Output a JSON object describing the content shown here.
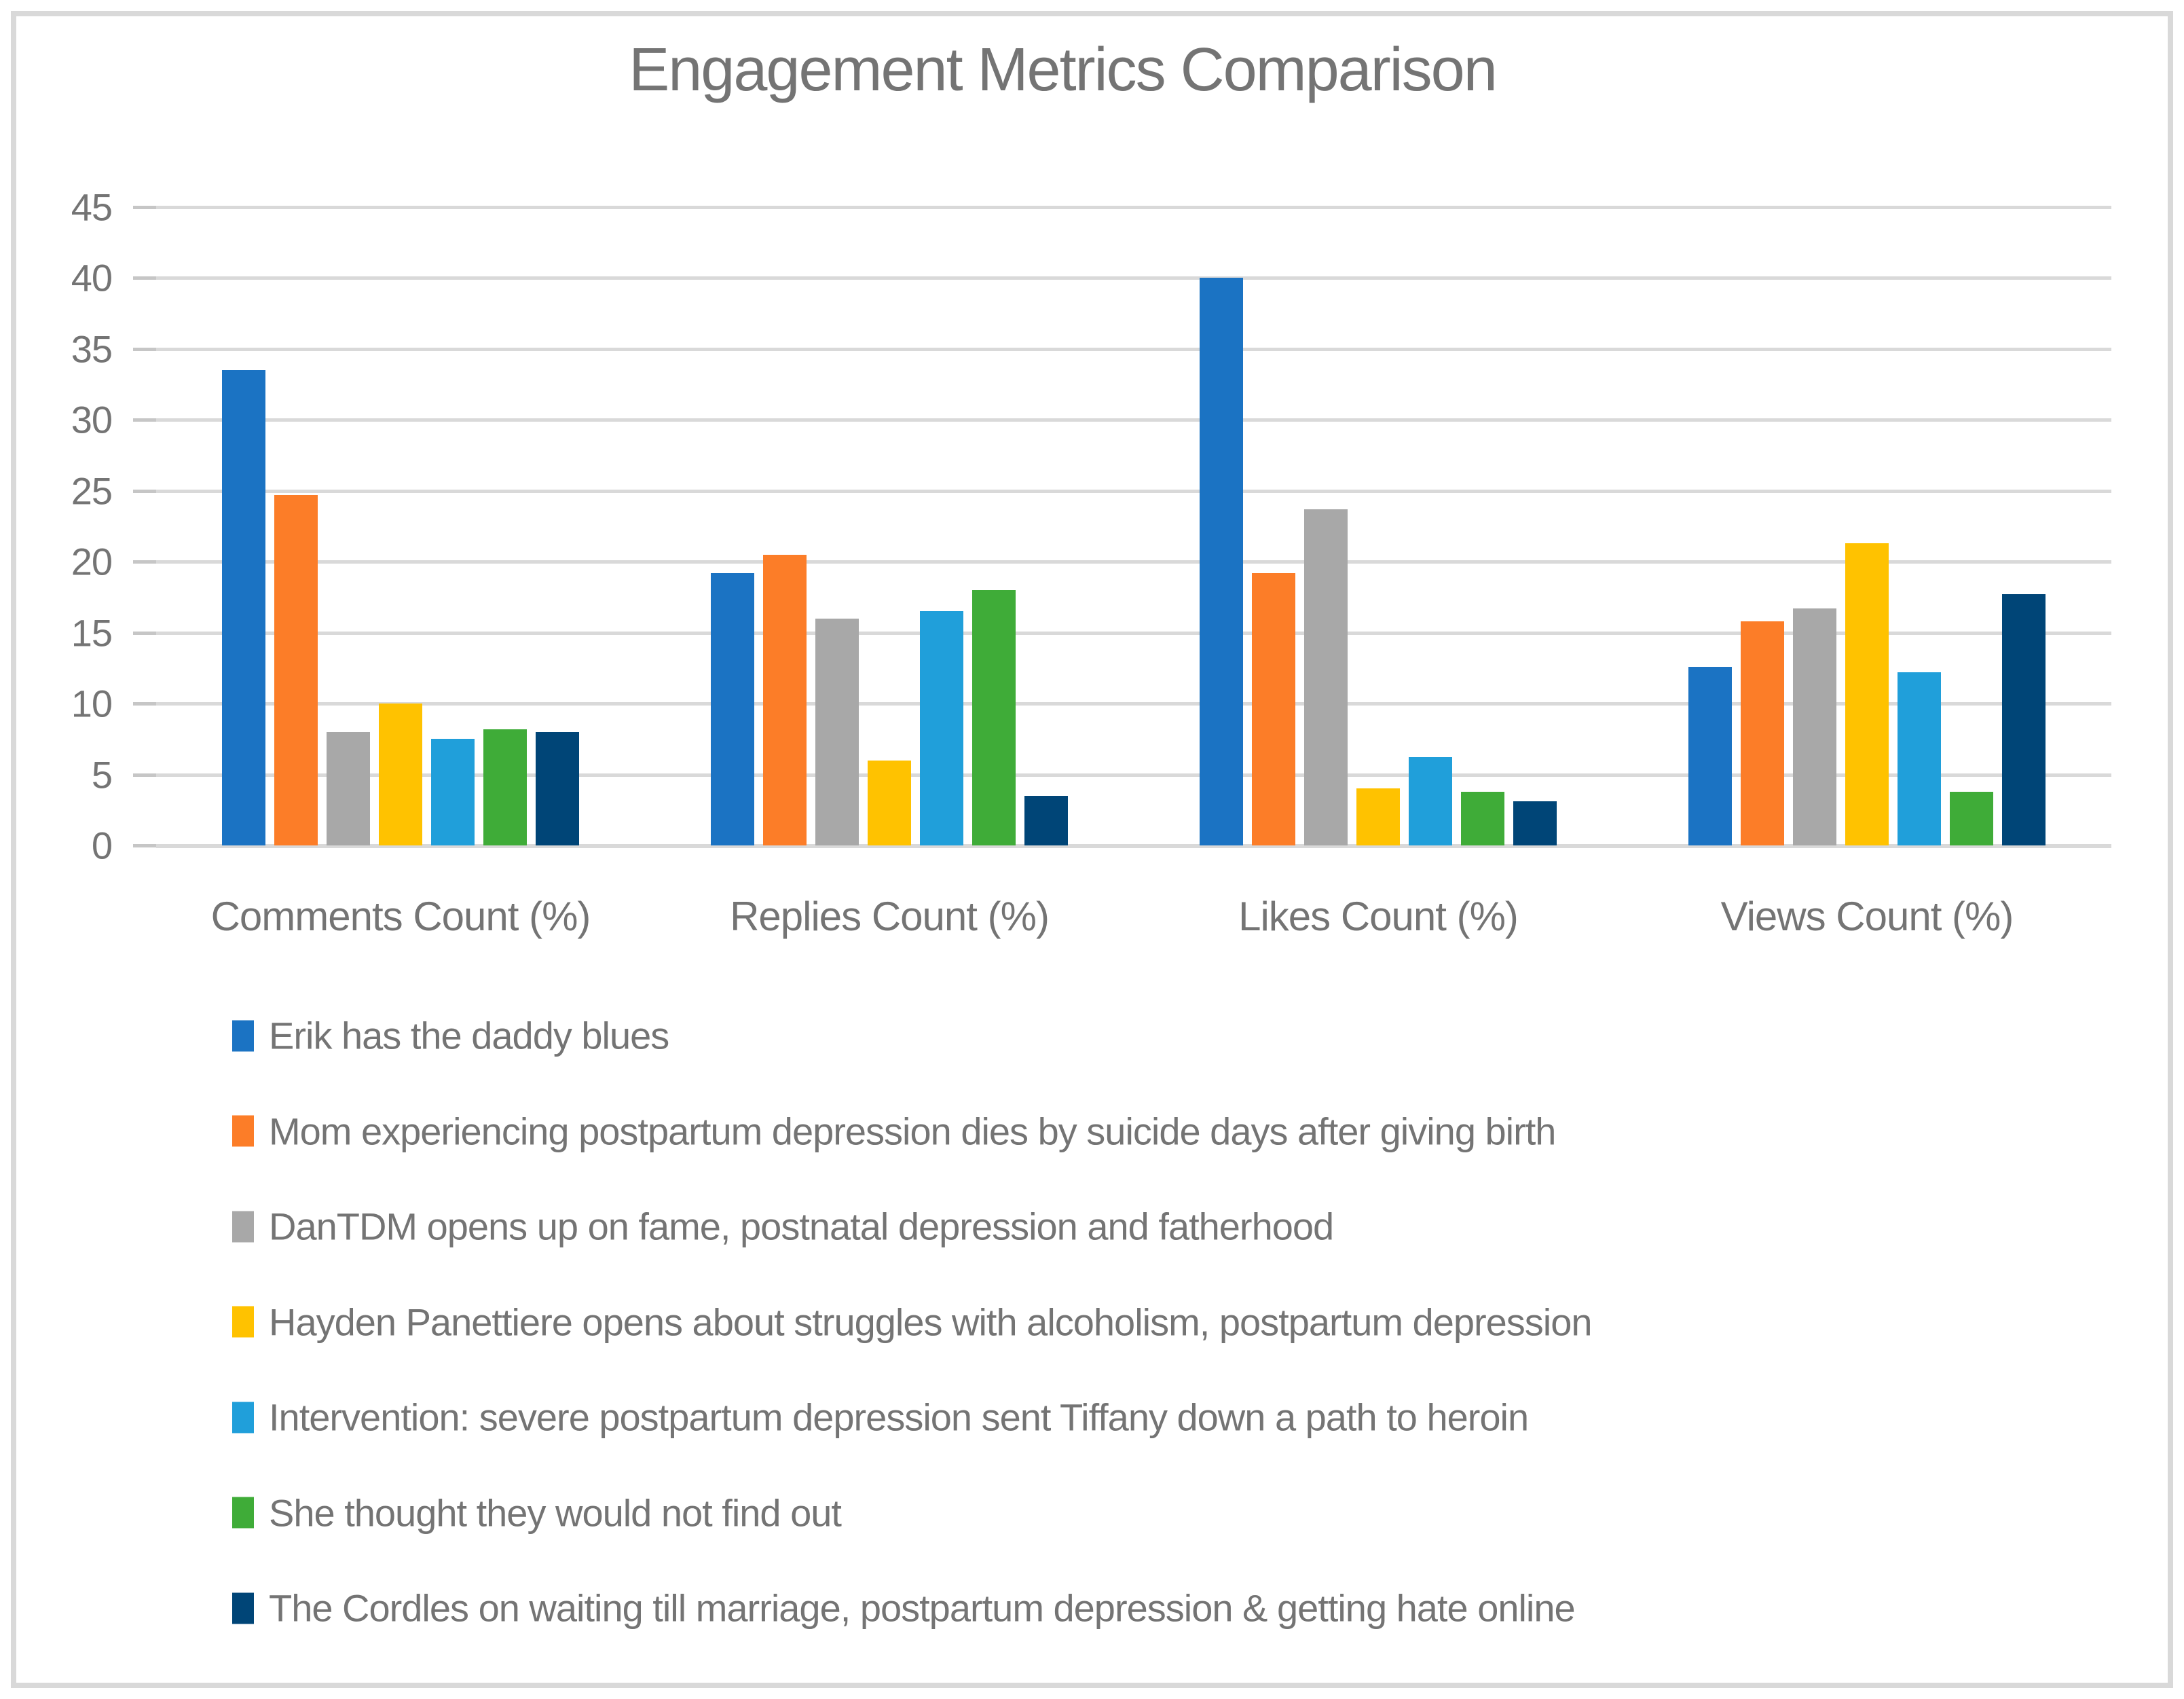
{
  "chart_data": {
    "type": "bar",
    "title": "Engagement Metrics Comparison",
    "categories": [
      "Comments Count (%)",
      "Replies Count (%)",
      "Likes Count (%)",
      "Views Count (%)"
    ],
    "series": [
      {
        "name": "Erik has the daddy blues",
        "color": "#1B73C3",
        "values": [
          33.5,
          19.2,
          40.0,
          12.6
        ]
      },
      {
        "name": "Mom experiencing postpartum depression dies by suicide days after giving birth",
        "color": "#FC7D28",
        "values": [
          24.7,
          20.5,
          19.2,
          15.8
        ]
      },
      {
        "name": "DanTDM opens up on fame, postnatal depression and fatherhood",
        "color": "#A8A8A8",
        "values": [
          8.0,
          16.0,
          23.7,
          16.7
        ]
      },
      {
        "name": "Hayden Panettiere opens about struggles with alcoholism, postpartum depression",
        "color": "#FFC200",
        "values": [
          10.0,
          6.0,
          4.0,
          21.3
        ]
      },
      {
        "name": "Intervention: severe postpartum depression sent Tiffany down a path to heroin",
        "color": "#209FDA",
        "values": [
          7.5,
          16.5,
          6.2,
          12.2
        ]
      },
      {
        "name": "She thought they would not find out",
        "color": "#3FAC38",
        "values": [
          8.2,
          18.0,
          3.8,
          3.8
        ]
      },
      {
        "name": "The Cordles on waiting till marriage, postpartum depression & getting hate online",
        "color": "#004577",
        "values": [
          8.0,
          3.5,
          3.1,
          17.7
        ]
      }
    ],
    "xlabel": "",
    "ylabel": "",
    "ylim": [
      0,
      45
    ],
    "ytick_step": 5,
    "ytick_labels": [
      "45",
      "40",
      "35",
      "30",
      "25",
      "20",
      "15",
      "10",
      "5",
      "0"
    ],
    "grid": "horizontal",
    "legend_position": "bottom-left",
    "colors": {
      "text": "#747474",
      "gridline": "#D9D9D9",
      "border": "#D9D9D9",
      "background": "#FFFFFF"
    }
  }
}
